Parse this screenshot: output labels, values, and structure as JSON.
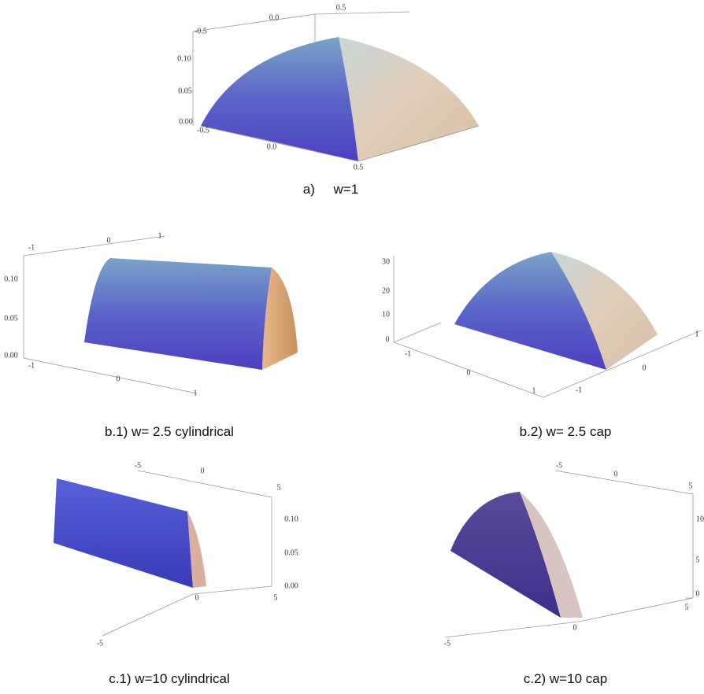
{
  "panels": {
    "a": {
      "caption": "a)     w=1",
      "ticks": [
        "-0.5",
        "0.0",
        "0.5",
        "0.10",
        "0.05",
        "0.00",
        "-0.5",
        "0.0",
        "0.5"
      ]
    },
    "b1": {
      "caption": "b.1) w= 2.5 cylindrical",
      "ticks": [
        "-1",
        "0",
        "1",
        "0.10",
        "0.05",
        "0.00",
        "-1",
        "0",
        "1"
      ]
    },
    "b2": {
      "caption": "b.2) w= 2.5 cap",
      "ticks": [
        "30",
        "20",
        "10",
        "0",
        "-1",
        "0",
        "1",
        "1",
        "0",
        "-1"
      ]
    },
    "c1": {
      "caption": "c.1) w=10 cylindrical",
      "ticks": [
        "-5",
        "0",
        "5",
        "0.10",
        "0.05",
        "0.00",
        "5",
        "0",
        "-5"
      ]
    },
    "c2": {
      "caption": "c.2) w=10 cap",
      "ticks": [
        "-5",
        "0",
        "5",
        "10",
        "5",
        "0",
        "5",
        "0",
        "-5"
      ]
    }
  }
}
